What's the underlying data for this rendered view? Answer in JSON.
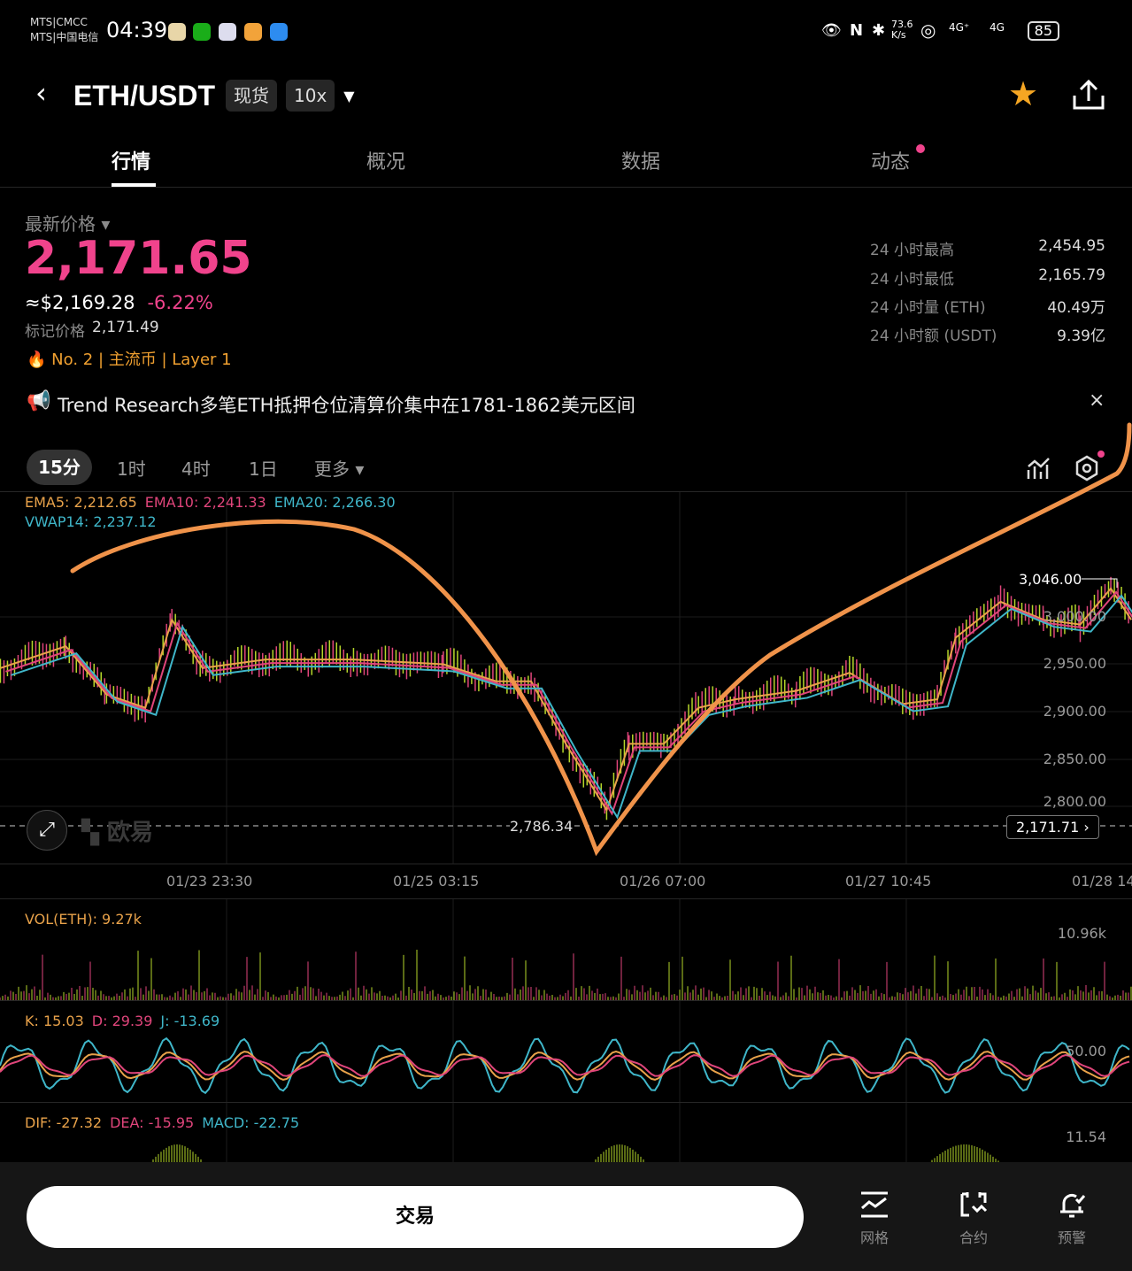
{
  "status_bar": {
    "carrier1": "MTS|CMCC",
    "carrier2": "MTS|中国电信",
    "time": "04:39",
    "net_speed": "73.6 K/s",
    "signal1": "4G⁺",
    "signal2": "4G",
    "battery": "85"
  },
  "header": {
    "title": "ETH/USDT",
    "badge_spot": "现货",
    "badge_leverage": "10x",
    "favorite": true
  },
  "tabs": [
    {
      "label": "行情",
      "active": true
    },
    {
      "label": "概况"
    },
    {
      "label": "数据"
    },
    {
      "label": "动态",
      "dot": true
    }
  ],
  "price_panel": {
    "label": "最新价格",
    "last_price": "2,171.65",
    "usd_price": "≈$2,169.28",
    "change": "-6.22%",
    "mark_label": "标记价格",
    "mark_price": "2,171.49",
    "tags": [
      "No. 2",
      "主流币",
      "Layer 1"
    ],
    "stats": [
      {
        "label": "24 小时最高",
        "value": "2,454.95"
      },
      {
        "label": "24 小时最低",
        "value": "2,165.79"
      },
      {
        "label": "24 小时量 (ETH)",
        "value": "40.49万"
      },
      {
        "label": "24 小时额 (USDT)",
        "value": "9.39亿"
      }
    ]
  },
  "news": {
    "text": "Trend Research多笔ETH抵押仓位清算价集中在1781-1862美元区间"
  },
  "timeframes": [
    {
      "label": "15分",
      "active": true
    },
    {
      "label": "1时"
    },
    {
      "label": "4时"
    },
    {
      "label": "1日"
    },
    {
      "label": "更多"
    }
  ],
  "indicators": {
    "ema5": "EMA5: 2,212.65",
    "ema10": "EMA10: 2,241.33",
    "ema20": "EMA20: 2,266.30",
    "vwap": "VWAP14: 2,237.12",
    "vol": "VOL(ETH): 9.27k",
    "vol_max": "10.96k",
    "k": "K: 15.03",
    "d": "D: 29.39",
    "j": "J: -13.69",
    "kdj_level": "50.00",
    "dif": "DIF: -27.32",
    "dea": "DEA: -15.95",
    "macd": "MACD: -22.75",
    "macd_max": "11.54"
  },
  "colors": {
    "up": "#b5d62a",
    "down": "#e0457b",
    "price": "#f0438c",
    "ema5": "#e8a24a",
    "ema10": "#e0457b",
    "ema20": "#3fb6c9",
    "annotation": "#f0934a"
  },
  "watermark": "欧易",
  "chart_data": {
    "type": "line",
    "y_ticks": [
      "3,000.00",
      "2,950.00",
      "2,900.00",
      "2,850.00",
      "2,800.00"
    ],
    "x_ticks": [
      "01/23 23:30",
      "01/25 03:15",
      "01/26 07:00",
      "01/27 10:45",
      "01/28 14"
    ],
    "high_label": "3,046.00",
    "low_label": "2,786.34",
    "current_price_label": "2,171.71",
    "ylim": [
      2790,
      3050
    ],
    "points": [
      [
        "01/22 21:45",
        2946
      ],
      [
        "01/23 05:45",
        2969
      ],
      [
        "01/23 10:45",
        2918
      ],
      [
        "01/23 15:30",
        2904
      ],
      [
        "01/23 18:45",
        2997
      ],
      [
        "01/23 22:30",
        2946
      ],
      [
        "01/24 06:15",
        2955
      ],
      [
        "01/24 17:00",
        2955
      ],
      [
        "01/25 04:00",
        2950
      ],
      [
        "01/25 10:30",
        2932
      ],
      [
        "01/25 14:45",
        2932
      ],
      [
        "01/25 19:00",
        2866
      ],
      [
        "01/26 00:00",
        2796
      ],
      [
        "01/26 02:45",
        2866
      ],
      [
        "01/26 07:00",
        2866
      ],
      [
        "01/26 11:15",
        2904
      ],
      [
        "01/26 15:45",
        2913
      ],
      [
        "01/26 23:15",
        2922
      ],
      [
        "01/27 05:45",
        2941
      ],
      [
        "01/27 12:15",
        2908
      ],
      [
        "01/27 16:30",
        2913
      ],
      [
        "01/27 18:45",
        2978
      ],
      [
        "01/28 00:15",
        3016
      ],
      [
        "01/28 05:30",
        2997
      ],
      [
        "01/28 10:00",
        2992
      ],
      [
        "01/28 13:45",
        3030
      ],
      [
        "01/28 16:15",
        2997
      ]
    ]
  },
  "bottom": {
    "trade": "交易",
    "grid": "网格",
    "contract": "合约",
    "alert": "预警"
  }
}
